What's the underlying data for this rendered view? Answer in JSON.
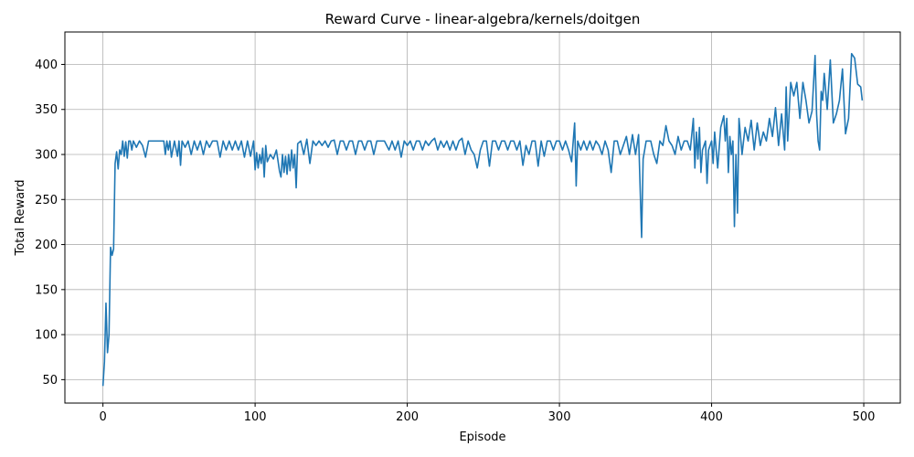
{
  "chart_data": {
    "type": "line",
    "title": "Reward Curve - linear-algebra/kernels/doitgen",
    "xlabel": "Episode",
    "ylabel": "Total Reward",
    "xlim": [
      -25,
      524
    ],
    "ylim": [
      24,
      436
    ],
    "xticks": [
      0,
      100,
      200,
      300,
      400,
      500
    ],
    "yticks": [
      50,
      100,
      150,
      200,
      250,
      300,
      350,
      400
    ],
    "grid": true,
    "line_color": "#1f77b4",
    "series": [
      {
        "points": [
          [
            0,
            43
          ],
          [
            1,
            70
          ],
          [
            2,
            135
          ],
          [
            3,
            80
          ],
          [
            4,
            100
          ],
          [
            5,
            197
          ],
          [
            6,
            188
          ],
          [
            7,
            195
          ],
          [
            8,
            290
          ],
          [
            9,
            303
          ],
          [
            10,
            284
          ],
          [
            11,
            305
          ],
          [
            12,
            300
          ],
          [
            13,
            315
          ],
          [
            14,
            298
          ],
          [
            15,
            314
          ],
          [
            16,
            296
          ],
          [
            17,
            315
          ],
          [
            18,
            315
          ],
          [
            19,
            305
          ],
          [
            20,
            315
          ],
          [
            22,
            308
          ],
          [
            24,
            315
          ],
          [
            26,
            310
          ],
          [
            28,
            297
          ],
          [
            30,
            315
          ],
          [
            35,
            315
          ],
          [
            40,
            315
          ],
          [
            41,
            300
          ],
          [
            42,
            315
          ],
          [
            43,
            305
          ],
          [
            44,
            315
          ],
          [
            45,
            297
          ],
          [
            47,
            315
          ],
          [
            49,
            298
          ],
          [
            50,
            315
          ],
          [
            51,
            288
          ],
          [
            52,
            315
          ],
          [
            54,
            308
          ],
          [
            56,
            315
          ],
          [
            58,
            300
          ],
          [
            60,
            315
          ],
          [
            62,
            305
          ],
          [
            64,
            315
          ],
          [
            66,
            300
          ],
          [
            68,
            315
          ],
          [
            70,
            308
          ],
          [
            72,
            315
          ],
          [
            75,
            315
          ],
          [
            77,
            297
          ],
          [
            79,
            315
          ],
          [
            81,
            305
          ],
          [
            83,
            315
          ],
          [
            85,
            305
          ],
          [
            87,
            315
          ],
          [
            89,
            305
          ],
          [
            91,
            315
          ],
          [
            93,
            297
          ],
          [
            95,
            315
          ],
          [
            97,
            298
          ],
          [
            99,
            315
          ],
          [
            100,
            283
          ],
          [
            101,
            302
          ],
          [
            102,
            285
          ],
          [
            103,
            300
          ],
          [
            104,
            290
          ],
          [
            105,
            307
          ],
          [
            106,
            275
          ],
          [
            107,
            310
          ],
          [
            108,
            292
          ],
          [
            110,
            300
          ],
          [
            112,
            295
          ],
          [
            114,
            305
          ],
          [
            116,
            282
          ],
          [
            117,
            275
          ],
          [
            118,
            300
          ],
          [
            119,
            280
          ],
          [
            120,
            298
          ],
          [
            121,
            278
          ],
          [
            122,
            300
          ],
          [
            123,
            282
          ],
          [
            124,
            305
          ],
          [
            125,
            285
          ],
          [
            126,
            300
          ],
          [
            127,
            263
          ],
          [
            128,
            312
          ],
          [
            130,
            315
          ],
          [
            132,
            300
          ],
          [
            134,
            317
          ],
          [
            136,
            290
          ],
          [
            138,
            315
          ],
          [
            140,
            310
          ],
          [
            142,
            315
          ],
          [
            144,
            310
          ],
          [
            146,
            315
          ],
          [
            148,
            308
          ],
          [
            150,
            315
          ],
          [
            152,
            316
          ],
          [
            154,
            300
          ],
          [
            156,
            315
          ],
          [
            158,
            315
          ],
          [
            160,
            305
          ],
          [
            162,
            315
          ],
          [
            164,
            315
          ],
          [
            166,
            300
          ],
          [
            168,
            315
          ],
          [
            170,
            315
          ],
          [
            172,
            305
          ],
          [
            174,
            315
          ],
          [
            176,
            315
          ],
          [
            178,
            300
          ],
          [
            180,
            315
          ],
          [
            185,
            315
          ],
          [
            188,
            305
          ],
          [
            190,
            315
          ],
          [
            192,
            305
          ],
          [
            194,
            315
          ],
          [
            196,
            297
          ],
          [
            198,
            315
          ],
          [
            200,
            310
          ],
          [
            202,
            315
          ],
          [
            204,
            305
          ],
          [
            206,
            315
          ],
          [
            208,
            315
          ],
          [
            210,
            305
          ],
          [
            212,
            315
          ],
          [
            214,
            310
          ],
          [
            216,
            315
          ],
          [
            218,
            318
          ],
          [
            220,
            305
          ],
          [
            222,
            315
          ],
          [
            224,
            308
          ],
          [
            226,
            315
          ],
          [
            228,
            305
          ],
          [
            230,
            315
          ],
          [
            232,
            305
          ],
          [
            234,
            315
          ],
          [
            236,
            318
          ],
          [
            238,
            300
          ],
          [
            240,
            315
          ],
          [
            242,
            305
          ],
          [
            244,
            300
          ],
          [
            246,
            285
          ],
          [
            248,
            305
          ],
          [
            250,
            315
          ],
          [
            252,
            315
          ],
          [
            254,
            287
          ],
          [
            256,
            315
          ],
          [
            258,
            315
          ],
          [
            260,
            305
          ],
          [
            262,
            315
          ],
          [
            264,
            315
          ],
          [
            266,
            305
          ],
          [
            268,
            315
          ],
          [
            270,
            315
          ],
          [
            272,
            305
          ],
          [
            274,
            315
          ],
          [
            276,
            288
          ],
          [
            278,
            310
          ],
          [
            280,
            300
          ],
          [
            282,
            315
          ],
          [
            284,
            315
          ],
          [
            286,
            287
          ],
          [
            288,
            315
          ],
          [
            290,
            298
          ],
          [
            292,
            315
          ],
          [
            294,
            315
          ],
          [
            296,
            305
          ],
          [
            298,
            315
          ],
          [
            300,
            315
          ],
          [
            302,
            305
          ],
          [
            304,
            315
          ],
          [
            306,
            305
          ],
          [
            308,
            292
          ],
          [
            310,
            335
          ],
          [
            311,
            265
          ],
          [
            312,
            315
          ],
          [
            314,
            305
          ],
          [
            316,
            315
          ],
          [
            318,
            305
          ],
          [
            320,
            315
          ],
          [
            322,
            305
          ],
          [
            324,
            315
          ],
          [
            326,
            310
          ],
          [
            328,
            300
          ],
          [
            330,
            315
          ],
          [
            332,
            305
          ],
          [
            334,
            280
          ],
          [
            336,
            315
          ],
          [
            338,
            315
          ],
          [
            340,
            300
          ],
          [
            342,
            310
          ],
          [
            344,
            320
          ],
          [
            346,
            300
          ],
          [
            348,
            322
          ],
          [
            350,
            300
          ],
          [
            352,
            322
          ],
          [
            354,
            208
          ],
          [
            355,
            295
          ],
          [
            357,
            315
          ],
          [
            360,
            315
          ],
          [
            362,
            300
          ],
          [
            364,
            290
          ],
          [
            366,
            315
          ],
          [
            368,
            310
          ],
          [
            370,
            332
          ],
          [
            372,
            315
          ],
          [
            374,
            310
          ],
          [
            376,
            300
          ],
          [
            378,
            320
          ],
          [
            380,
            305
          ],
          [
            382,
            315
          ],
          [
            384,
            315
          ],
          [
            386,
            305
          ],
          [
            388,
            340
          ],
          [
            389,
            285
          ],
          [
            390,
            325
          ],
          [
            391,
            295
          ],
          [
            392,
            330
          ],
          [
            393,
            280
          ],
          [
            394,
            305
          ],
          [
            396,
            315
          ],
          [
            397,
            268
          ],
          [
            398,
            305
          ],
          [
            400,
            315
          ],
          [
            401,
            290
          ],
          [
            402,
            325
          ],
          [
            404,
            285
          ],
          [
            406,
            330
          ],
          [
            408,
            343
          ],
          [
            409,
            315
          ],
          [
            410,
            340
          ],
          [
            411,
            280
          ],
          [
            412,
            320
          ],
          [
            413,
            300
          ],
          [
            414,
            315
          ],
          [
            415,
            220
          ],
          [
            416,
            300
          ],
          [
            417,
            235
          ],
          [
            418,
            340
          ],
          [
            420,
            300
          ],
          [
            422,
            330
          ],
          [
            424,
            315
          ],
          [
            426,
            338
          ],
          [
            428,
            305
          ],
          [
            430,
            335
          ],
          [
            432,
            310
          ],
          [
            434,
            325
          ],
          [
            436,
            315
          ],
          [
            438,
            340
          ],
          [
            440,
            320
          ],
          [
            442,
            352
          ],
          [
            444,
            310
          ],
          [
            446,
            345
          ],
          [
            448,
            305
          ],
          [
            449,
            375
          ],
          [
            450,
            315
          ],
          [
            452,
            380
          ],
          [
            454,
            365
          ],
          [
            456,
            380
          ],
          [
            458,
            340
          ],
          [
            460,
            380
          ],
          [
            462,
            360
          ],
          [
            464,
            335
          ],
          [
            466,
            348
          ],
          [
            468,
            410
          ],
          [
            469,
            345
          ],
          [
            470,
            315
          ],
          [
            471,
            305
          ],
          [
            472,
            370
          ],
          [
            473,
            360
          ],
          [
            474,
            390
          ],
          [
            476,
            350
          ],
          [
            478,
            405
          ],
          [
            480,
            335
          ],
          [
            482,
            345
          ],
          [
            484,
            360
          ],
          [
            486,
            395
          ],
          [
            488,
            323
          ],
          [
            490,
            340
          ],
          [
            492,
            412
          ],
          [
            494,
            407
          ],
          [
            496,
            378
          ],
          [
            498,
            375
          ],
          [
            499,
            360
          ]
        ]
      }
    ]
  }
}
